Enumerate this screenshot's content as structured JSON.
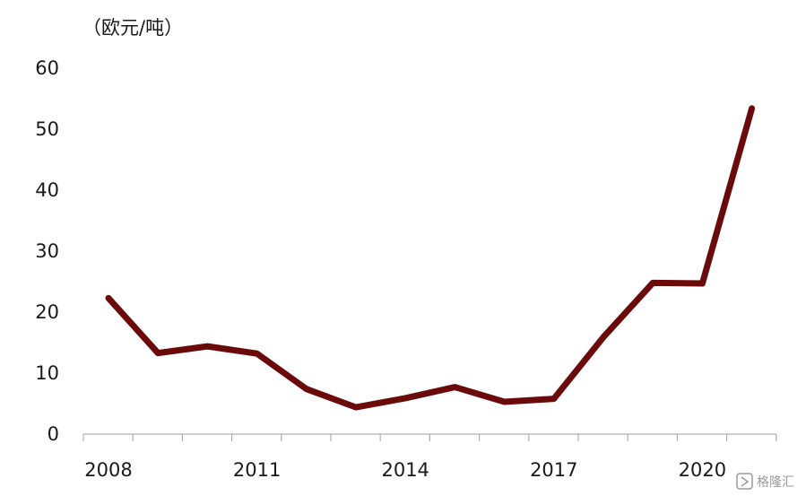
{
  "chart_data": {
    "type": "line",
    "title": "",
    "xlabel": "",
    "ylabel": "",
    "unit_label": "（欧元/吨）",
    "x": [
      2008,
      2009,
      2010,
      2011,
      2012,
      2013,
      2014,
      2015,
      2016,
      2017,
      2018,
      2019,
      2020,
      2021
    ],
    "series": [
      {
        "values": [
          22.3,
          13.3,
          14.4,
          13.2,
          7.4,
          4.4,
          5.9,
          7.7,
          5.3,
          5.8,
          15.9,
          24.8,
          24.7,
          53.4
        ],
        "color": "#6b0a0a"
      }
    ],
    "ylim": [
      0,
      60
    ],
    "yticks": [
      0,
      10,
      20,
      30,
      40,
      50,
      60
    ],
    "xtick_labels": [
      "2008",
      "2011",
      "2014",
      "2017",
      "2020"
    ],
    "grid": false,
    "legend": "none"
  },
  "watermark": {
    "text": "格隆汇",
    "icon": "brand-logo-icon"
  }
}
